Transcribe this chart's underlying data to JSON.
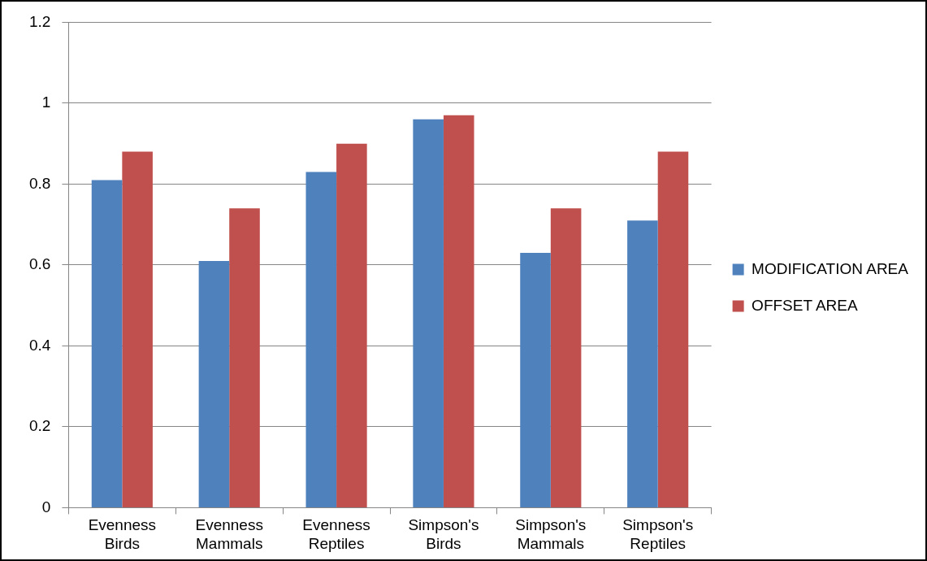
{
  "chart_data": {
    "type": "bar",
    "categories": [
      "Evenness Birds",
      "Evenness Mammals",
      "Evenness Reptiles",
      "Simpson's Birds",
      "Simpson's Mammals",
      "Simpson's Reptiles"
    ],
    "series": [
      {
        "name": "MODIFICATION AREA",
        "color": "#4f81bd",
        "values": [
          0.81,
          0.61,
          0.83,
          0.96,
          0.63,
          0.71
        ]
      },
      {
        "name": "OFFSET AREA",
        "color": "#c0504d",
        "values": [
          0.88,
          0.74,
          0.9,
          0.97,
          0.74,
          0.88
        ]
      }
    ],
    "ylim": [
      0,
      1.2
    ],
    "yticks": [
      0,
      0.2,
      0.4,
      0.6,
      0.8,
      1,
      1.2
    ],
    "grid": "y",
    "legend": "right"
  }
}
